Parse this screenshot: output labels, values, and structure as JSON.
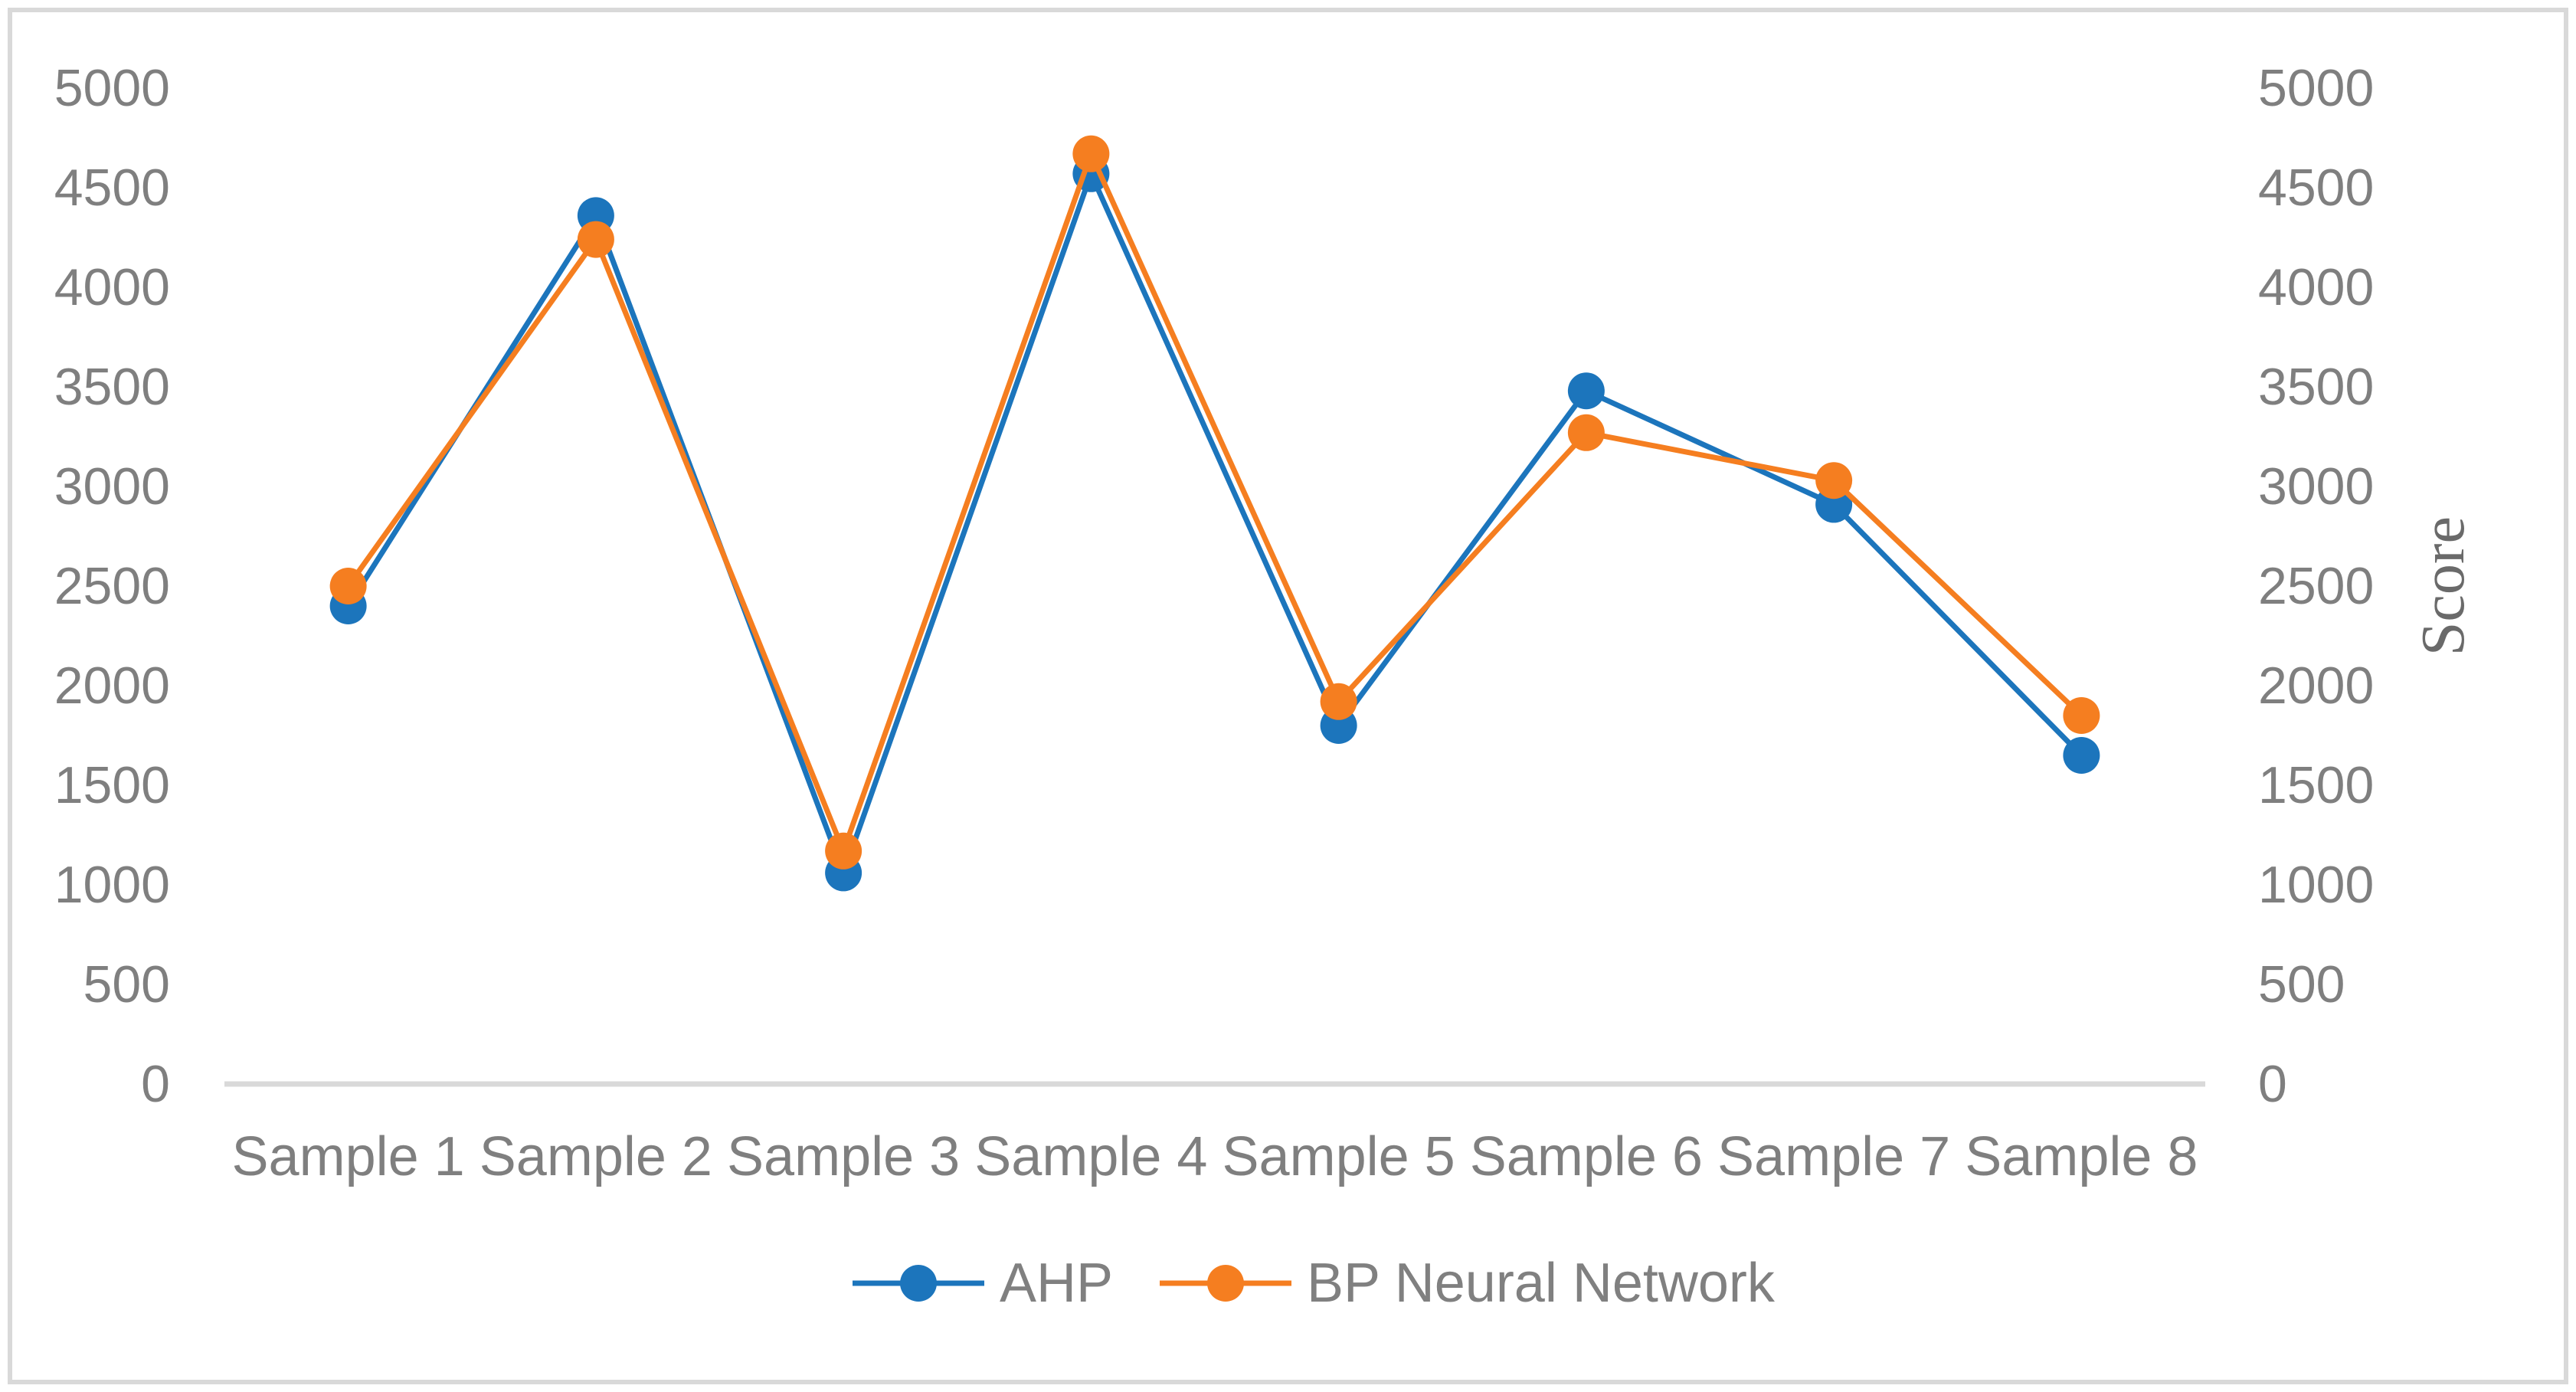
{
  "figure": {
    "background_color": "#FFFFFF",
    "border_color": "#D9D9D9"
  },
  "chart_data": {
    "type": "line",
    "title": "",
    "categories": [
      "Sample 1",
      "Sample 2",
      "Sample 3",
      "Sample 4",
      "Sample 5",
      "Sample 6",
      "Sample 7",
      "Sample 8"
    ],
    "series": [
      {
        "name": "AHP",
        "color": "#1C75BC",
        "values": [
          2400,
          4360,
          1060,
          4570,
          1800,
          3480,
          2910,
          1650
        ]
      },
      {
        "name": "BP Neural Network",
        "color": "#F57E20",
        "values": [
          2500,
          4240,
          1170,
          4670,
          1920,
          3270,
          3030,
          1850
        ]
      }
    ],
    "xlabel": "",
    "ylabel": "",
    "ylabel_right": "Score",
    "ylim": [
      0,
      5000
    ],
    "yticks": [
      0,
      500,
      1000,
      1500,
      2000,
      2500,
      3000,
      3500,
      4000,
      4500,
      5000
    ],
    "left_axis_labels": [
      "0",
      "500",
      "1000",
      "1500",
      "2000",
      "2500",
      "3000",
      "3500",
      "4000",
      "4500",
      "5000"
    ],
    "right_axis_labels": [
      "0",
      "500",
      "1000",
      "1500",
      "2000",
      "2500",
      "3000",
      "3500",
      "4000",
      "4500",
      "5000"
    ],
    "grid": false,
    "legend_position": "bottom-center",
    "marker": "circle",
    "tick_label_color": "#7F7F7F",
    "x_label_color": "#7F7F7F",
    "legend_text_color": "#808080",
    "score_label_color": "#6A6A6A",
    "axis_line_color": "#D9D9D9"
  },
  "legend": {
    "items": [
      {
        "label": "AHP",
        "color": "#1C75BC"
      },
      {
        "label": "BP Neural Network",
        "color": "#F57E20"
      }
    ]
  }
}
